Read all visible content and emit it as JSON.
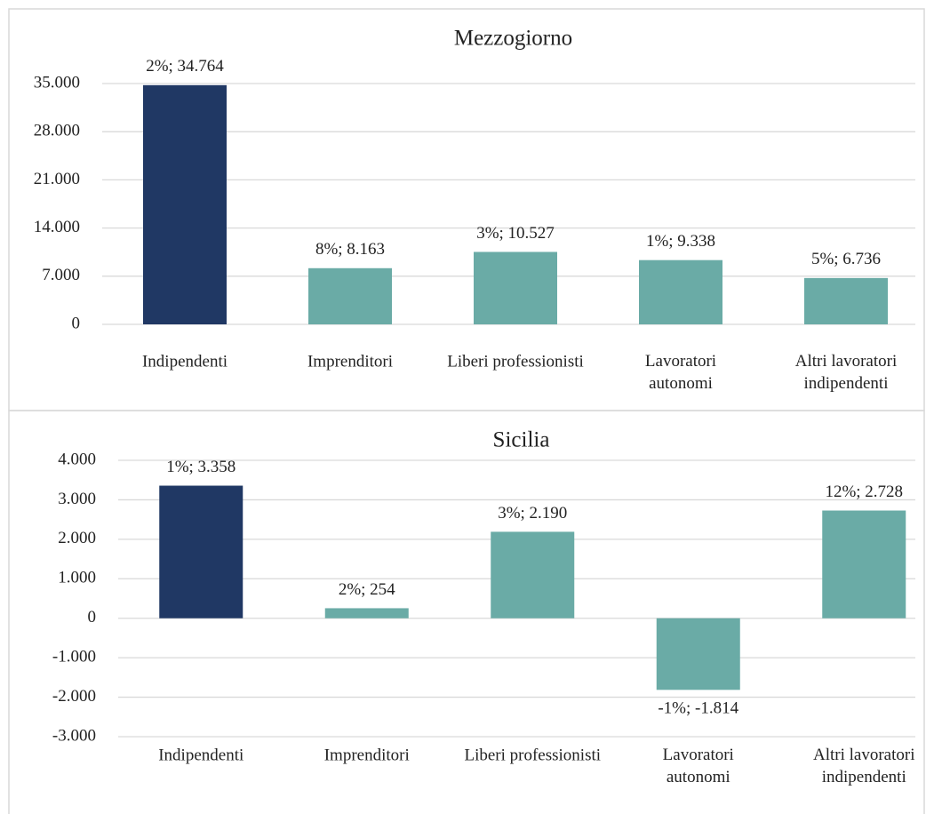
{
  "chart_data": [
    {
      "type": "bar",
      "title": "Mezzogiorno",
      "categories": [
        "Indipendenti",
        "Imprenditori",
        "Liberi professionisti",
        "Lavoratori autonomi",
        "Altri lavoratori indipendenti"
      ],
      "values": [
        34764,
        8163,
        10527,
        9338,
        6736
      ],
      "value_labels": [
        "2%; 34.764",
        "8%; 8.163",
        "3%; 10.527",
        "1%; 9.338",
        "5%; 6.736"
      ],
      "colors": [
        "#203864",
        "#6aaba6",
        "#6aaba6",
        "#6aaba6",
        "#6aaba6"
      ],
      "ylim": [
        0,
        35000
      ],
      "yticks": [
        0,
        {
          "value": 7000,
          "label": "7.000"
        },
        {
          "value": 14000,
          "label": "14.000"
        },
        {
          "value": 21000,
          "label": "21.000"
        },
        {
          "value": 28000,
          "label": "28.000"
        },
        {
          "value": 35000,
          "label": "35.000"
        }
      ],
      "grid": true
    },
    {
      "type": "bar",
      "title": "Sicilia",
      "categories": [
        "Indipendenti",
        "Imprenditori",
        "Liberi professionisti",
        "Lavoratori autonomi",
        "Altri lavoratori indipendenti"
      ],
      "values": [
        3358,
        254,
        2190,
        -1814,
        2728
      ],
      "value_labels": [
        "1%; 3.358",
        "2%; 254",
        "3%; 2.190",
        "-1%; -1.814",
        "12%; 2.728"
      ],
      "colors": [
        "#203864",
        "#6aaba6",
        "#6aaba6",
        "#6aaba6",
        "#6aaba6"
      ],
      "ylim": [
        -3000,
        4000
      ],
      "yticks": [
        {
          "value": -3000,
          "label": "-3.000"
        },
        {
          "value": -2000,
          "label": "-2.000"
        },
        {
          "value": -1000,
          "label": "-1.000"
        },
        0,
        {
          "value": 1000,
          "label": "1.000"
        },
        {
          "value": 2000,
          "label": "2.000"
        },
        {
          "value": 3000,
          "label": "3.000"
        },
        {
          "value": 4000,
          "label": "4.000"
        }
      ],
      "grid": true
    }
  ]
}
